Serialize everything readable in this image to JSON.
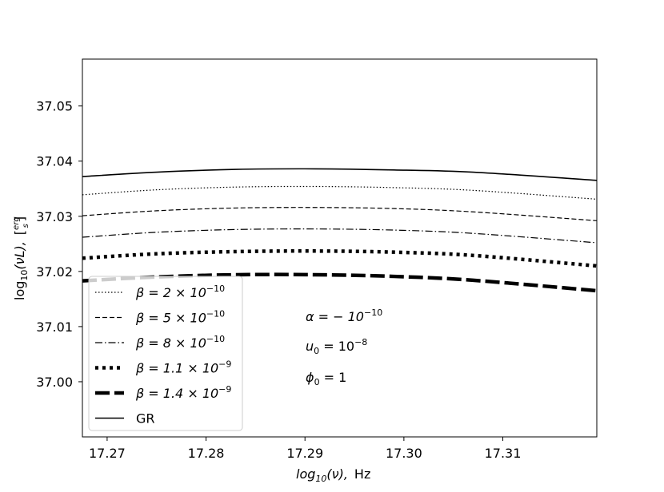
{
  "chart_data": {
    "type": "line",
    "xlabel_main": "log",
    "xlabel_sub": "10",
    "xlabel_var": "(ν),",
    "xlabel_unit": "Hz",
    "ylabel_main": "log",
    "ylabel_sub": "10",
    "ylabel_var": "(νL),",
    "ylabel_unit_num": "erg",
    "ylabel_unit_den": "s",
    "xlim": [
      17.2675,
      17.3195
    ],
    "ylim": [
      36.99,
      37.0585
    ],
    "xticks": [
      17.27,
      17.28,
      17.29,
      17.3,
      17.31
    ],
    "xtick_labels": [
      "17.27",
      "17.28",
      "17.29",
      "17.30",
      "17.31"
    ],
    "yticks": [
      37.0,
      37.01,
      37.02,
      37.03,
      37.04,
      37.05
    ],
    "ytick_labels": [
      "37.00",
      "37.01",
      "37.02",
      "37.03",
      "37.04",
      "37.05"
    ],
    "x": [
      17.2675,
      17.275,
      17.283,
      17.291,
      17.299,
      17.307,
      17.3195
    ],
    "series": [
      {
        "name_base": "β = 2 × 10",
        "name_exp": "−10",
        "style": "dotted",
        "values": [
          37.0339,
          37.0348,
          37.0353,
          37.0354,
          37.0352,
          37.0347,
          37.0331
        ]
      },
      {
        "name_base": "β = 5 × 10",
        "name_exp": "−10",
        "style": "dashed",
        "values": [
          37.0301,
          37.031,
          37.0315,
          37.0316,
          37.0314,
          37.0308,
          37.0292
        ]
      },
      {
        "name_base": "β = 8 × 10",
        "name_exp": "−10",
        "style": "dashdot",
        "values": [
          37.0262,
          37.0271,
          37.0276,
          37.0277,
          37.0275,
          37.0269,
          37.0252
        ]
      },
      {
        "name_base": "β = 1.1 × 10",
        "name_exp": "−9",
        "style": "thick-dotted",
        "values": [
          37.0224,
          37.0232,
          37.0236,
          37.0237,
          37.0235,
          37.0229,
          37.021
        ]
      },
      {
        "name_base": "β = 1.4 × 10",
        "name_exp": "−9",
        "style": "thick-dashed",
        "values": [
          37.0183,
          37.019,
          37.0194,
          37.0194,
          37.0191,
          37.0184,
          37.0165
        ]
      },
      {
        "name_base": "GR",
        "name_exp": "",
        "style": "solid",
        "values": [
          37.0372,
          37.038,
          37.0385,
          37.0386,
          37.0384,
          37.038,
          37.0365
        ]
      }
    ],
    "annotations": [
      {
        "base": "α = − 10",
        "exp": "−10"
      },
      {
        "base": "u",
        "sub": "0",
        "rest": " = 10",
        "exp": "−8"
      },
      {
        "base": "ϕ",
        "sub": "0",
        "rest": " = 1",
        "exp": ""
      }
    ],
    "legend_position": "lower-left",
    "grid": false
  }
}
